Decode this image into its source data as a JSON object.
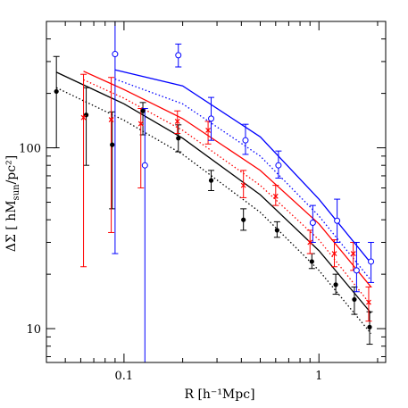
{
  "chart_data": {
    "type": "scatter",
    "title": "",
    "xlabel": "R [h⁻¹Mpc]",
    "ylabel_parts": {
      "delta": "ΔΣ [ hM",
      "sub": "sun",
      "rest": "/pc²]"
    },
    "xscale": "log",
    "yscale": "log",
    "xlim": [
      0.04,
      2.2
    ],
    "ylim": [
      6.5,
      500
    ],
    "xticks": [
      {
        "value": 0.1,
        "label": "0.1"
      },
      {
        "value": 1,
        "label": "1"
      }
    ],
    "yticks": [
      {
        "value": 10,
        "label": "10"
      },
      {
        "value": 100,
        "label": "100"
      }
    ],
    "grid": false,
    "legend": "none",
    "series": [
      {
        "color": "#000000",
        "marker": "filled-circle",
        "points": [
          {
            "x": 0.045,
            "y": 205,
            "lo": 100,
            "hi": 320
          },
          {
            "x": 0.064,
            "y": 152,
            "lo": 80,
            "hi": 215
          },
          {
            "x": 0.087,
            "y": 104,
            "lo": 46,
            "hi": 158
          },
          {
            "x": 0.125,
            "y": 160,
            "lo": 118,
            "hi": 178
          },
          {
            "x": 0.19,
            "y": 113,
            "lo": 95,
            "hi": 134
          },
          {
            "x": 0.28,
            "y": 66,
            "lo": 58,
            "hi": 75
          },
          {
            "x": 0.41,
            "y": 40,
            "lo": 35,
            "hi": 46
          },
          {
            "x": 0.61,
            "y": 35,
            "lo": 32,
            "hi": 39
          },
          {
            "x": 0.92,
            "y": 23.5,
            "lo": 21.5,
            "hi": 26
          },
          {
            "x": 1.22,
            "y": 17.5,
            "lo": 15.5,
            "hi": 20
          },
          {
            "x": 1.52,
            "y": 14.5,
            "lo": 12,
            "hi": 17
          },
          {
            "x": 1.82,
            "y": 10.2,
            "lo": 8.2,
            "hi": 12.4
          }
        ]
      },
      {
        "color": "#ff0000",
        "marker": "cross",
        "points": [
          {
            "x": 0.062,
            "y": 147,
            "lo": 22,
            "hi": 255
          },
          {
            "x": 0.086,
            "y": 143,
            "lo": 34,
            "hi": 245
          },
          {
            "x": 0.122,
            "y": 136,
            "lo": 60,
            "hi": 165
          },
          {
            "x": 0.188,
            "y": 140,
            "lo": 120,
            "hi": 160
          },
          {
            "x": 0.27,
            "y": 125,
            "lo": 105,
            "hi": 140
          },
          {
            "x": 0.41,
            "y": 62,
            "lo": 53,
            "hi": 75
          },
          {
            "x": 0.6,
            "y": 54,
            "lo": 48,
            "hi": 62
          },
          {
            "x": 0.9,
            "y": 30,
            "lo": 26,
            "hi": 35
          },
          {
            "x": 1.2,
            "y": 26,
            "lo": 22,
            "hi": 31
          },
          {
            "x": 1.5,
            "y": 26,
            "lo": 21,
            "hi": 30
          },
          {
            "x": 1.8,
            "y": 14,
            "lo": 11,
            "hi": 17
          }
        ]
      },
      {
        "color": "#0000ff",
        "marker": "open-circle",
        "points": [
          {
            "x": 0.09,
            "y": 330,
            "lo": 26,
            "hi": 500
          },
          {
            "x": 0.128,
            "y": 80,
            "lo": 6.5,
            "hi": 165
          },
          {
            "x": 0.19,
            "y": 325,
            "lo": 280,
            "hi": 375
          },
          {
            "x": 0.28,
            "y": 145,
            "lo": 110,
            "hi": 190
          },
          {
            "x": 0.42,
            "y": 110,
            "lo": 92,
            "hi": 135
          },
          {
            "x": 0.62,
            "y": 80,
            "lo": 68,
            "hi": 96
          },
          {
            "x": 0.93,
            "y": 38.5,
            "lo": 30,
            "hi": 48
          },
          {
            "x": 1.24,
            "y": 39.5,
            "lo": 30,
            "hi": 52
          },
          {
            "x": 1.56,
            "y": 21,
            "lo": 16,
            "hi": 30
          },
          {
            "x": 1.85,
            "y": 23.5,
            "lo": 18,
            "hi": 30
          }
        ]
      }
    ],
    "curves": [
      {
        "color": "#000000",
        "dash": "solid",
        "points": [
          [
            0.045,
            262
          ],
          [
            0.1,
            175
          ],
          [
            0.2,
            113
          ],
          [
            0.5,
            55
          ],
          [
            1.0,
            27
          ],
          [
            1.85,
            12.2
          ]
        ]
      },
      {
        "color": "#000000",
        "dash": "dotted",
        "points": [
          [
            0.045,
            215
          ],
          [
            0.1,
            142
          ],
          [
            0.2,
            92
          ],
          [
            0.5,
            44
          ],
          [
            1.0,
            21
          ],
          [
            1.85,
            9.4
          ]
        ]
      },
      {
        "color": "#ff0000",
        "dash": "solid",
        "points": [
          [
            0.062,
            265
          ],
          [
            0.1,
            210
          ],
          [
            0.2,
            145
          ],
          [
            0.5,
            75
          ],
          [
            1.0,
            38
          ],
          [
            1.85,
            17
          ]
        ]
      },
      {
        "color": "#ff0000",
        "dash": "dotted",
        "points": [
          [
            0.062,
            238
          ],
          [
            0.1,
            188
          ],
          [
            0.2,
            125
          ],
          [
            0.5,
            62
          ],
          [
            1.0,
            31
          ],
          [
            1.85,
            13.5
          ]
        ]
      },
      {
        "color": "#0000ff",
        "dash": "solid",
        "points": [
          [
            0.09,
            270
          ],
          [
            0.2,
            220
          ],
          [
            0.5,
            115
          ],
          [
            1.0,
            52
          ],
          [
            1.85,
            23
          ]
        ]
      },
      {
        "color": "#0000ff",
        "dash": "dotted",
        "points": [
          [
            0.09,
            240
          ],
          [
            0.2,
            175
          ],
          [
            0.5,
            90
          ],
          [
            1.0,
            42
          ],
          [
            1.85,
            18.5
          ]
        ]
      }
    ]
  }
}
